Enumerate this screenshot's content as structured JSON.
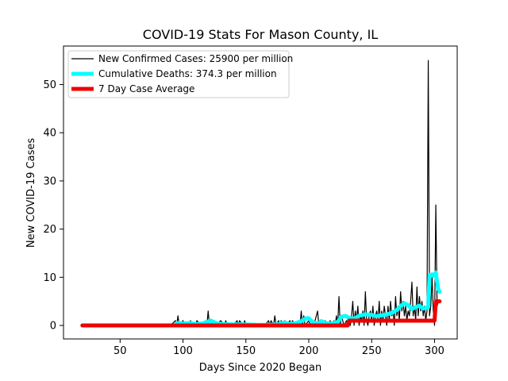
{
  "chart_data": {
    "type": "line",
    "title": "COVID-19 Stats For Mason County, IL",
    "xlabel": "Days Since 2020 Began",
    "ylabel": "New COVID-19 Cases",
    "xlim": [
      5,
      318
    ],
    "ylim": [
      -2.8,
      58
    ],
    "xticks": [
      50,
      100,
      150,
      200,
      250,
      300
    ],
    "yticks": [
      0,
      10,
      20,
      30,
      40,
      50
    ],
    "legend_position": "top-left",
    "series": [
      {
        "name": "New Confirmed Cases: 25900 per million",
        "color": "#000000",
        "x": [
          20,
          90,
          94,
          95,
          96,
          97,
          100,
          101,
          105,
          106,
          107,
          110,
          111,
          115,
          116,
          118,
          119,
          120,
          121,
          125,
          126,
          130,
          133,
          134,
          135,
          140,
          143,
          144,
          145,
          148,
          149,
          150,
          155,
          160,
          165,
          168,
          169,
          170,
          172,
          173,
          174,
          176,
          177,
          178,
          180,
          181,
          182,
          185,
          186,
          187,
          190,
          192,
          193,
          194,
          195,
          196,
          197,
          200,
          201,
          203,
          204,
          205,
          207,
          208,
          210,
          212,
          213,
          215,
          217,
          218,
          219,
          220,
          221,
          222,
          223,
          224,
          225,
          226,
          228,
          230,
          231,
          232,
          233,
          234,
          235,
          236,
          237,
          238,
          239,
          240,
          241,
          242,
          243,
          244,
          245,
          246,
          247,
          248,
          249,
          250,
          251,
          252,
          253,
          254,
          255,
          256,
          257,
          258,
          259,
          260,
          261,
          262,
          263,
          264,
          265,
          266,
          267,
          268,
          269,
          270,
          271,
          272,
          273,
          274,
          275,
          276,
          277,
          278,
          279,
          280,
          281,
          282,
          283,
          284,
          285,
          286,
          287,
          288,
          289,
          290,
          291,
          292,
          293,
          294,
          295,
          296,
          297,
          298,
          299,
          300,
          301,
          302,
          303,
          304
        ],
        "y": [
          0,
          0,
          1,
          0,
          2,
          0,
          1,
          0,
          0,
          1,
          0,
          0,
          1,
          0,
          0,
          1,
          0,
          3,
          0,
          1,
          0,
          1,
          0,
          1,
          0,
          0,
          1,
          0,
          1,
          0,
          1,
          0,
          0,
          0,
          0,
          1,
          0,
          1,
          0,
          2,
          0,
          1,
          0,
          1,
          0,
          1,
          0,
          1,
          0,
          1,
          0,
          1,
          0,
          3,
          0,
          2,
          0,
          1,
          0,
          1,
          0,
          1,
          3,
          0,
          1,
          0,
          1,
          0,
          1,
          0,
          0,
          1,
          0,
          2,
          0,
          6,
          0,
          2,
          0,
          1,
          0,
          1,
          0,
          2,
          5,
          0,
          3,
          1,
          4,
          0,
          2,
          1,
          3,
          0,
          7,
          1,
          0,
          2,
          3,
          1,
          4,
          0,
          2,
          3,
          1,
          5,
          0,
          3,
          1,
          4,
          2,
          0,
          4,
          1,
          5,
          2,
          3,
          0,
          6,
          2,
          4,
          1,
          7,
          3,
          5,
          2,
          4,
          1,
          3,
          2,
          5,
          9,
          2,
          4,
          1,
          8,
          2,
          6,
          3,
          5,
          2,
          4,
          1,
          3,
          55,
          2,
          4,
          10,
          3,
          0,
          25,
          4,
          5,
          5
        ]
      },
      {
        "name": "Cumulative Deaths: 374.3 per million",
        "color": "#00FFFF",
        "x": [
          95,
          100,
          105,
          110,
          115,
          118,
          122,
          126,
          130,
          140,
          150,
          160,
          170,
          175,
          180,
          185,
          190,
          195,
          198,
          200,
          203,
          205,
          208,
          210,
          213,
          216,
          220,
          223,
          226,
          229,
          232,
          236,
          240,
          245,
          250,
          254,
          258,
          262,
          266,
          270,
          273,
          276,
          279,
          282,
          285,
          288,
          291,
          293,
          295,
          296,
          297,
          298,
          299,
          300,
          301,
          302,
          303,
          304
        ],
        "y": [
          0.5,
          0.4,
          0.5,
          0.3,
          0.4,
          0.6,
          1.0,
          0.5,
          0.3,
          0.2,
          0.2,
          0.1,
          0.1,
          0.2,
          0.6,
          0.3,
          0.5,
          1.0,
          1.5,
          1.5,
          0.7,
          0.5,
          0.4,
          0.9,
          0.5,
          0.4,
          0.5,
          0.7,
          1.8,
          2.0,
          1.6,
          1.4,
          2.0,
          2.3,
          2.2,
          1.9,
          2.1,
          2.3,
          2.6,
          3.2,
          4.0,
          4.6,
          4.2,
          3.4,
          3.8,
          4.1,
          3.5,
          3.6,
          3.8,
          10.5,
          10.3,
          10.6,
          10.3,
          10.5,
          11.0,
          9.0,
          7.5,
          7.0
        ]
      },
      {
        "name": "7 Day Case Average",
        "color": "#EE0000",
        "x": [
          20,
          231,
          232,
          233,
          296,
          297,
          298,
          299,
          300,
          301,
          302,
          303,
          304
        ],
        "y": [
          0,
          0,
          1,
          1,
          1,
          1,
          1,
          1,
          1,
          5,
          5,
          5,
          5
        ]
      }
    ]
  }
}
